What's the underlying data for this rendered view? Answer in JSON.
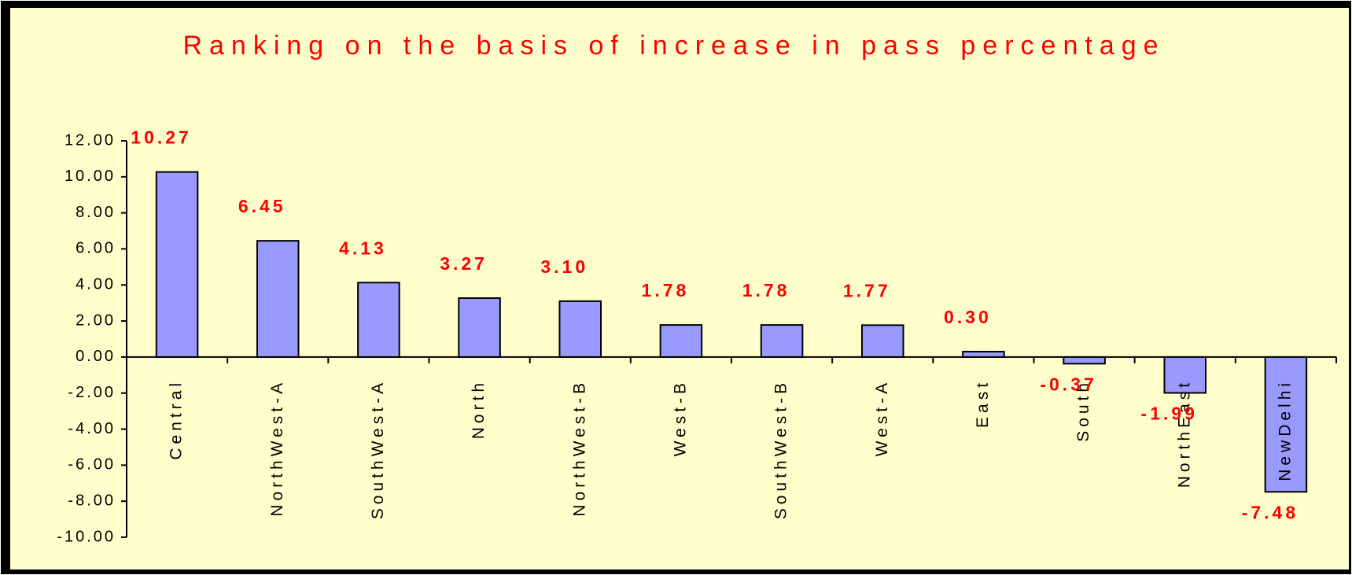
{
  "chart_data": {
    "type": "bar",
    "title": "Ranking on the basis of increase in pass percentage",
    "categories": [
      "Central",
      "NorthWest-A",
      "SouthWest-A",
      "North",
      "NorthWest-B",
      "West-B",
      "SouthWest-B",
      "West-A",
      "East",
      "South",
      "NorthEast",
      "NewDelhi"
    ],
    "values": [
      10.27,
      6.45,
      4.13,
      3.27,
      3.1,
      1.78,
      1.78,
      1.77,
      0.3,
      -0.37,
      -1.99,
      -7.48
    ],
    "value_labels": [
      "10.27",
      "6.45",
      "4.13",
      "3.27",
      "3.10",
      "1.78",
      "1.78",
      "1.77",
      "0.30",
      "-0.37",
      "-1.99",
      "-7.48"
    ],
    "color": "#9999ff",
    "ylim": [
      -10,
      12
    ],
    "yticks": [
      {
        "value": -10,
        "label": "-10.00"
      },
      {
        "value": -8,
        "label": "-8.00"
      },
      {
        "value": -6,
        "label": "-6.00"
      },
      {
        "value": -4,
        "label": "-4.00"
      },
      {
        "value": -2,
        "label": "-2.00"
      },
      {
        "value": 0,
        "label": "0.00"
      },
      {
        "value": 2,
        "label": "2.00"
      },
      {
        "value": 4,
        "label": "4.00"
      },
      {
        "value": 6,
        "label": "6.00"
      },
      {
        "value": 8,
        "label": "8.00"
      },
      {
        "value": 10,
        "label": "10.00"
      },
      {
        "value": 12,
        "label": "12.00"
      }
    ]
  }
}
